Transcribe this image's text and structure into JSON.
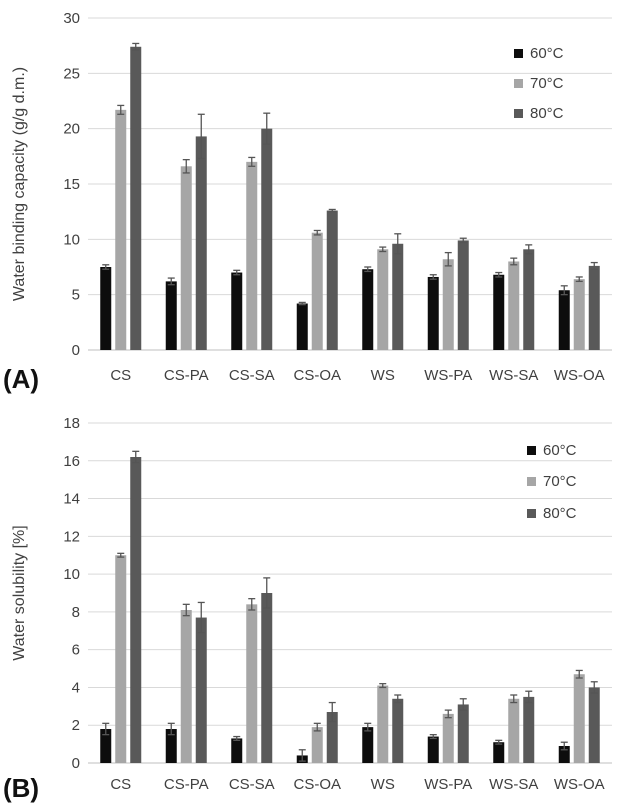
{
  "colors": {
    "s60": "#0d0d0d",
    "s70": "#a6a6a6",
    "s80": "#595959"
  },
  "chart_data": [
    {
      "type": "bar",
      "panel_label": "(A)",
      "ylabel": "Water binding capacity (g/g d.m.)",
      "ylim": [
        0,
        30
      ],
      "yticks": [
        0,
        5,
        10,
        15,
        20,
        25,
        30
      ],
      "grid": true,
      "legend_position": "top-right",
      "categories": [
        "CS",
        "CS-PA",
        "CS-SA",
        "CS-OA",
        "WS",
        "WS-PA",
        "WS-SA",
        "WS-OA"
      ],
      "series": [
        {
          "name": "60°C",
          "color": "#0d0d0d",
          "values": [
            7.5,
            6.2,
            7.0,
            4.2,
            7.3,
            6.6,
            6.8,
            5.4
          ],
          "errors": [
            0.2,
            0.3,
            0.2,
            0.1,
            0.2,
            0.2,
            0.2,
            0.4
          ]
        },
        {
          "name": "70°C",
          "color": "#a6a6a6",
          "values": [
            21.7,
            16.6,
            17.0,
            10.6,
            9.1,
            8.2,
            8.0,
            6.4
          ],
          "errors": [
            0.4,
            0.6,
            0.4,
            0.2,
            0.2,
            0.6,
            0.3,
            0.2
          ]
        },
        {
          "name": "80°C",
          "color": "#595959",
          "values": [
            27.4,
            19.3,
            20.0,
            12.6,
            9.6,
            9.9,
            9.1,
            7.6
          ],
          "errors": [
            0.3,
            2.0,
            1.4,
            0.1,
            0.9,
            0.2,
            0.4,
            0.3
          ]
        }
      ]
    },
    {
      "type": "bar",
      "panel_label": "(B)",
      "ylabel": "Water solubility [%]",
      "ylim": [
        0,
        18
      ],
      "yticks": [
        0,
        2,
        4,
        6,
        8,
        10,
        12,
        14,
        16,
        18
      ],
      "grid": true,
      "legend_position": "top-right",
      "categories": [
        "CS",
        "CS-PA",
        "CS-SA",
        "CS-OA",
        "WS",
        "WS-PA",
        "WS-SA",
        "WS-OA"
      ],
      "series": [
        {
          "name": "60°C",
          "color": "#0d0d0d",
          "values": [
            1.8,
            1.8,
            1.3,
            0.4,
            1.9,
            1.4,
            1.1,
            0.9
          ],
          "errors": [
            0.3,
            0.3,
            0.1,
            0.3,
            0.2,
            0.1,
            0.1,
            0.2
          ]
        },
        {
          "name": "70°C",
          "color": "#a6a6a6",
          "values": [
            11.0,
            8.1,
            8.4,
            1.9,
            4.1,
            2.6,
            3.4,
            4.7
          ],
          "errors": [
            0.1,
            0.3,
            0.3,
            0.2,
            0.1,
            0.2,
            0.2,
            0.2
          ]
        },
        {
          "name": "80°C",
          "color": "#595959",
          "values": [
            16.2,
            7.7,
            9.0,
            2.7,
            3.4,
            3.1,
            3.5,
            4.0
          ],
          "errors": [
            0.3,
            0.8,
            0.8,
            0.5,
            0.2,
            0.3,
            0.3,
            0.3
          ]
        }
      ]
    }
  ]
}
